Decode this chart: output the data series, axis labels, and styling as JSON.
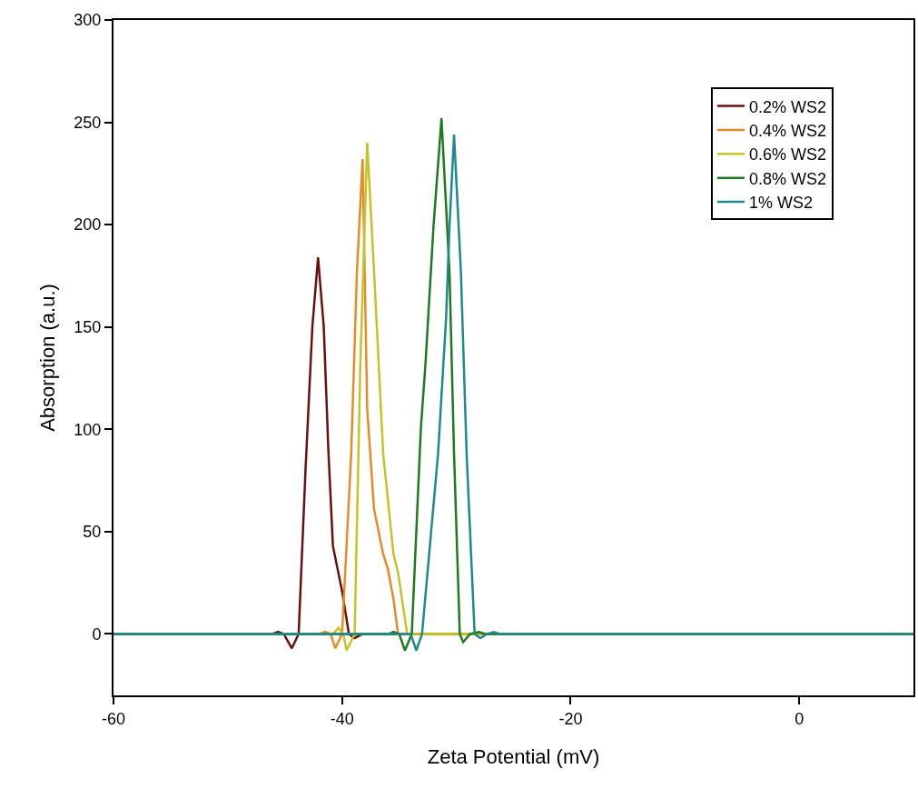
{
  "chart_data": {
    "type": "line",
    "xlabel": "Zeta Potential (mV)",
    "ylabel": "Absorption (a.u.)",
    "xlim": [
      -60,
      10
    ],
    "xticks": [
      -60,
      -40,
      -20,
      0
    ],
    "ylim": [
      -30,
      300
    ],
    "yticks": [
      0,
      50,
      100,
      150,
      200,
      250,
      300
    ],
    "legend": "top right",
    "marker": "none",
    "line_style": "solid",
    "series": [
      {
        "name": "0.2% WS2",
        "color": "#6b1010",
        "x": [
          -60,
          -46.1,
          -45.6,
          -45.1,
          -44.4,
          -43.8,
          -43.2,
          -42.6,
          -42.1,
          -41.6,
          -41.2,
          -40.8,
          -40.0,
          -39.4,
          -38.9,
          -38.2,
          10
        ],
        "values": [
          0,
          0,
          1,
          0,
          -7,
          0,
          80,
          150,
          184,
          150,
          90,
          43,
          21,
          0,
          -2,
          0,
          0
        ]
      },
      {
        "name": "0.4% WS2",
        "color": "#e88a28",
        "x": [
          -60,
          -42.0,
          -41.5,
          -41.0,
          -40.6,
          -40.0,
          -39.2,
          -38.7,
          -38.2,
          -37.8,
          -37.2,
          -36.4,
          -36.0,
          -35.5,
          -35.1,
          10
        ],
        "values": [
          0,
          0,
          1,
          0,
          -7,
          0,
          88,
          177,
          232,
          110,
          61,
          39,
          32,
          17,
          0,
          0
        ]
      },
      {
        "name": "0.6% WS2",
        "color": "#c4c425",
        "x": [
          -60,
          -40.8,
          -40.3,
          -39.9,
          -39.6,
          -38.9,
          -38.4,
          -37.8,
          -37.2,
          -36.4,
          -35.5,
          -35.1,
          -34.3,
          10
        ],
        "values": [
          0,
          0,
          3,
          0,
          -8,
          0,
          132,
          240,
          177,
          88,
          39,
          30,
          0,
          0
        ]
      },
      {
        "name": "0.8% WS2",
        "color": "#1f7a1f",
        "x": [
          -60,
          -35.9,
          -35.5,
          -35.0,
          -34.5,
          -33.9,
          -33.1,
          -32.7,
          -32.0,
          -31.3,
          -30.6,
          -30.2,
          -29.7,
          -29.4,
          -28.8,
          -28.0,
          -27.5,
          10
        ],
        "values": [
          0,
          0,
          1,
          0,
          -8,
          0,
          101,
          132,
          199,
          252,
          177,
          88,
          0,
          -4,
          0,
          1,
          0,
          0
        ]
      },
      {
        "name": "1% WS2",
        "color": "#1f8a8a",
        "x": [
          -60,
          -34.0,
          -33.5,
          -33.0,
          -31.6,
          -30.9,
          -30.6,
          -30.2,
          -29.6,
          -29.1,
          -28.4,
          -27.9,
          -27.3,
          -26.7,
          -26.2,
          10
        ],
        "values": [
          0,
          0,
          -8,
          0,
          88,
          154,
          199,
          244,
          177,
          88,
          0,
          -2,
          0,
          1,
          0,
          0
        ]
      }
    ]
  }
}
